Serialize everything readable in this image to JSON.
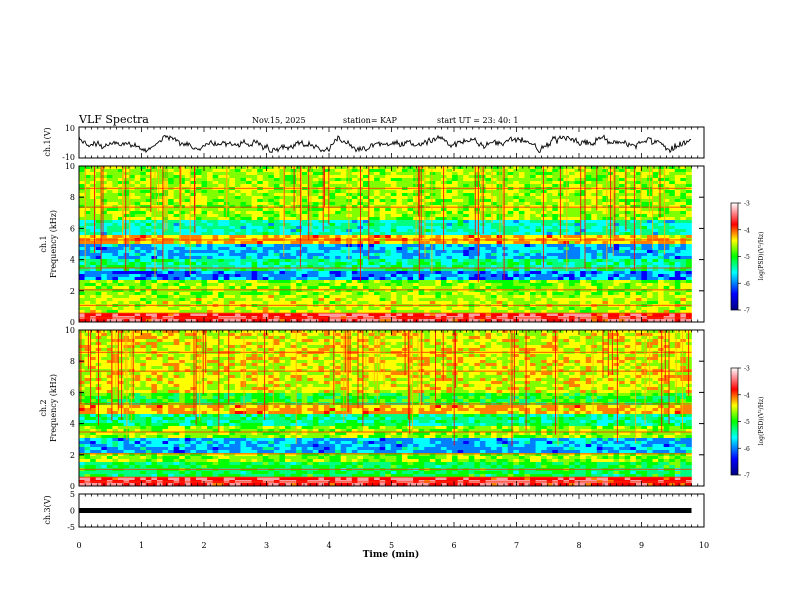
{
  "header": {
    "title": "VLF Spectra",
    "date": "Nov.15, 2025",
    "station": "station= KAP",
    "start": "start  UT =   23: 40: 1"
  },
  "colors": {
    "axis": "#000000",
    "waveform": "#000000",
    "background": "#ffffff"
  },
  "chart_data": [
    {
      "type": "line",
      "name": "ch1-waveform",
      "ylabel": "ch.1(V)",
      "ylim": [
        -10,
        10
      ],
      "yticks": [
        "10",
        "-10"
      ],
      "x_range_min": [
        0,
        9.8
      ]
    },
    {
      "type": "heatmap",
      "name": "ch1-spectrogram",
      "ylabel": "ch.1\nFrequency (kHz)",
      "ylim": [
        0,
        10
      ],
      "yticks": [
        "0",
        "2",
        "4",
        "6",
        "8",
        "10"
      ],
      "colorbar": {
        "label": "log(PSD)(V²/Hz)",
        "range": [
          -7,
          -3
        ],
        "ticks": [
          "-3",
          "-4",
          "-5",
          "-6",
          "-7"
        ]
      }
    },
    {
      "type": "heatmap",
      "name": "ch2-spectrogram",
      "ylabel": "ch.2\nFrequency (kHz)",
      "ylim": [
        0,
        10
      ],
      "yticks": [
        "0",
        "2",
        "4",
        "6",
        "8",
        "10"
      ],
      "colorbar": {
        "label": "log(PSD)(V²/Hz)",
        "range": [
          -7,
          -3
        ],
        "ticks": [
          "-3",
          "-4",
          "-5",
          "-6",
          "-7"
        ]
      }
    },
    {
      "type": "line",
      "name": "ch3-signal",
      "ylabel": "ch.3(V)",
      "ylim": [
        -5,
        5
      ],
      "yticks": [
        "5",
        "0",
        "-5"
      ],
      "constant_value": 0,
      "x_range_min": [
        0,
        9.8
      ]
    }
  ],
  "xaxis": {
    "label": "Time (min)",
    "range": [
      0,
      10
    ],
    "ticks": [
      "0",
      "1",
      "2",
      "3",
      "4",
      "5",
      "6",
      "7",
      "8",
      "9",
      "10"
    ]
  }
}
